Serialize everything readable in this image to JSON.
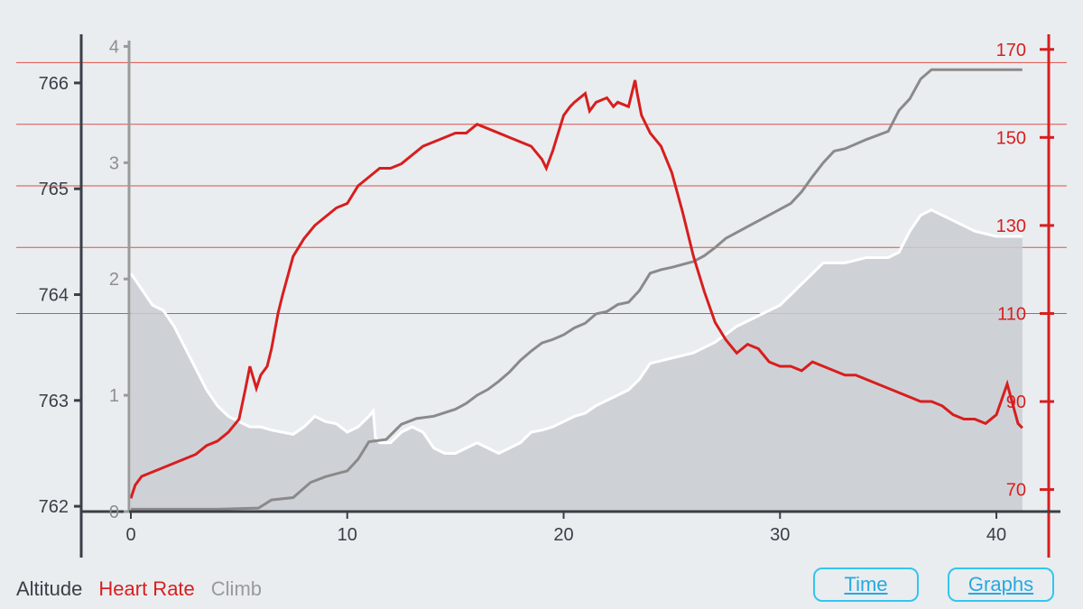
{
  "legend": {
    "altitude_label": "Altitude",
    "heart_rate_label": "Heart Rate",
    "climb_label": "Climb"
  },
  "buttons": {
    "time_label": "Time",
    "graphs_label": "Graphs"
  },
  "colors": {
    "altitude": "#3a3f47",
    "heart_rate": "#d81e1e",
    "climb": "#8a8a8a",
    "background": "#e9edf0",
    "button": "#33c5ee"
  },
  "chart_data": {
    "type": "line",
    "x_ticks": [
      0,
      10,
      20,
      30,
      40
    ],
    "xlim": [
      0,
      41.5
    ],
    "altitude_axis": {
      "ticks": [
        762,
        763,
        764,
        765,
        766
      ],
      "ylim": [
        761.95,
        766.4
      ]
    },
    "climb_axis": {
      "ticks": [
        0,
        1,
        2,
        3,
        4
      ],
      "ylim": [
        0,
        4.05
      ]
    },
    "heart_rate_axis": {
      "ticks": [
        70,
        90,
        110,
        130,
        150,
        170
      ],
      "ylim": [
        65,
        172
      ]
    },
    "heart_rate_gridlines": [
      110,
      125,
      139,
      153,
      167
    ],
    "series": [
      {
        "name": "Altitude",
        "style": "area",
        "axis": "altitude",
        "x": [
          0,
          0.5,
          1.0,
          1.5,
          2.0,
          2.5,
          3.0,
          3.5,
          4.0,
          4.5,
          5.0,
          5.5,
          6.0,
          6.5,
          7.0,
          7.5,
          8.0,
          8.5,
          9.0,
          9.5,
          10.0,
          10.5,
          11.0,
          11.2,
          11.3,
          11.5,
          12.0,
          12.5,
          13.0,
          13.5,
          14.0,
          14.5,
          15.0,
          15.5,
          16.0,
          16.5,
          17.0,
          17.5,
          18.0,
          18.5,
          19.0,
          19.5,
          20.0,
          20.5,
          21.0,
          21.5,
          22.0,
          22.5,
          23.0,
          23.5,
          24.0,
          25.0,
          26.0,
          26.5,
          27.0,
          28.0,
          29.0,
          30.0,
          31.0,
          32.0,
          33.0,
          34.0,
          35.0,
          35.5,
          36.0,
          36.5,
          37.0,
          38.0,
          39.0,
          40.0,
          41.2
        ],
        "y": [
          764.2,
          764.05,
          763.9,
          763.85,
          763.7,
          763.5,
          763.3,
          763.1,
          762.95,
          762.85,
          762.8,
          762.75,
          762.75,
          762.72,
          762.7,
          762.68,
          762.75,
          762.85,
          762.8,
          762.78,
          762.7,
          762.75,
          762.85,
          762.9,
          762.65,
          762.6,
          762.6,
          762.7,
          762.75,
          762.7,
          762.55,
          762.5,
          762.5,
          762.55,
          762.6,
          762.55,
          762.5,
          762.55,
          762.6,
          762.7,
          762.72,
          762.75,
          762.8,
          762.85,
          762.88,
          762.95,
          763.0,
          763.05,
          763.1,
          763.2,
          763.35,
          763.4,
          763.45,
          763.5,
          763.55,
          763.7,
          763.8,
          763.9,
          764.1,
          764.3,
          764.3,
          764.35,
          764.35,
          764.4,
          764.6,
          764.75,
          764.8,
          764.7,
          764.6,
          764.55,
          764.55
        ]
      },
      {
        "name": "Climb",
        "style": "line",
        "axis": "climb",
        "x": [
          0,
          2.0,
          4.0,
          5.9,
          6.5,
          7.5,
          8.3,
          9.0,
          10.0,
          10.5,
          11.0,
          11.8,
          12.5,
          13.2,
          14.0,
          15.0,
          15.5,
          16.0,
          16.5,
          17.0,
          17.5,
          18.0,
          18.5,
          19.0,
          19.5,
          20.0,
          20.5,
          21.0,
          21.5,
          22.0,
          22.5,
          23.0,
          23.5,
          24.0,
          24.5,
          25.0,
          26.0,
          26.5,
          27.0,
          27.5,
          28.0,
          28.5,
          29.0,
          30.0,
          30.5,
          31.0,
          31.5,
          32.0,
          32.5,
          33.0,
          34.0,
          35.0,
          35.5,
          36.0,
          36.5,
          37.0,
          41.2
        ],
        "y": [
          0.02,
          0.02,
          0.02,
          0.03,
          0.1,
          0.12,
          0.25,
          0.3,
          0.35,
          0.45,
          0.6,
          0.62,
          0.75,
          0.8,
          0.82,
          0.88,
          0.93,
          1.0,
          1.05,
          1.12,
          1.2,
          1.3,
          1.38,
          1.45,
          1.48,
          1.52,
          1.58,
          1.62,
          1.7,
          1.72,
          1.78,
          1.8,
          1.9,
          2.05,
          2.08,
          2.1,
          2.15,
          2.2,
          2.27,
          2.35,
          2.4,
          2.45,
          2.5,
          2.6,
          2.65,
          2.75,
          2.88,
          3.0,
          3.1,
          3.12,
          3.2,
          3.27,
          3.45,
          3.55,
          3.72,
          3.8,
          3.8
        ]
      },
      {
        "name": "Heart Rate",
        "style": "line",
        "axis": "heart_rate",
        "x": [
          0,
          0.2,
          0.5,
          1.0,
          1.5,
          2.0,
          2.5,
          3.0,
          3.5,
          4.0,
          4.5,
          5.0,
          5.3,
          5.5,
          5.8,
          6.0,
          6.3,
          6.5,
          6.8,
          7.0,
          7.5,
          8.0,
          8.5,
          9.0,
          9.5,
          10.0,
          10.5,
          11.0,
          11.5,
          12.0,
          12.5,
          13.0,
          13.5,
          14.0,
          14.5,
          15.0,
          15.5,
          16.0,
          16.5,
          17.0,
          17.5,
          18.0,
          18.5,
          19.0,
          19.2,
          19.5,
          20.0,
          20.3,
          20.5,
          21.0,
          21.2,
          21.5,
          22.0,
          22.3,
          22.5,
          23.0,
          23.3,
          23.4,
          23.6,
          24.0,
          24.5,
          25.0,
          25.5,
          26.0,
          26.5,
          27.0,
          27.5,
          28.0,
          28.5,
          29.0,
          29.5,
          30.0,
          30.5,
          31.0,
          31.5,
          32.0,
          32.5,
          33.0,
          33.5,
          34.0,
          34.5,
          35.0,
          35.5,
          36.0,
          36.5,
          37.0,
          37.5,
          38.0,
          38.5,
          39.0,
          39.5,
          40.0,
          40.5,
          41.0,
          41.2
        ],
        "y": [
          68,
          71,
          73,
          74,
          75,
          76,
          77,
          78,
          80,
          81,
          83,
          86,
          93,
          98,
          93,
          96,
          98,
          102,
          110,
          114,
          123,
          127,
          130,
          132,
          134,
          135,
          139,
          141,
          143,
          143,
          144,
          146,
          148,
          149,
          150,
          151,
          151,
          153,
          152,
          151,
          150,
          149,
          148,
          145,
          143,
          147,
          155,
          157,
          158,
          160,
          156,
          158,
          159,
          157,
          158,
          157,
          163,
          160,
          155,
          151,
          148,
          142,
          133,
          123,
          115,
          108,
          104,
          101,
          103,
          102,
          99,
          98,
          98,
          97,
          99,
          98,
          97,
          96,
          96,
          95,
          94,
          93,
          92,
          91,
          90,
          90,
          89,
          87,
          86,
          86,
          85,
          87,
          94,
          85,
          84
        ]
      }
    ]
  }
}
